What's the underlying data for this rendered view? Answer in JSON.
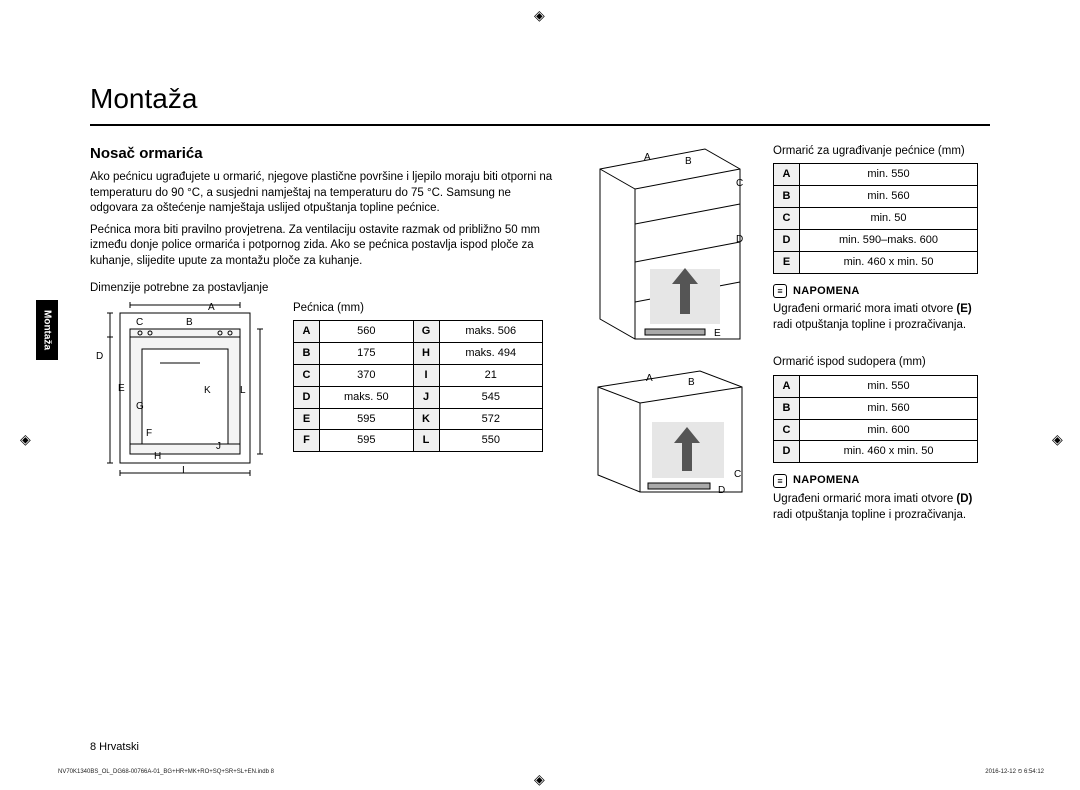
{
  "crop_mark": "◈",
  "side_tab": "Montaža",
  "heading": "Montaža",
  "section_title": "Nosač ormarića",
  "para1": "Ako pećnicu ugrađujete u ormarić, njegove plastične površine i ljepilo moraju biti otporni na temperaturu do 90 °C, a susjedni namještaj na temperaturu do 75 °C. Samsung ne odgovara za oštećenje namještaja uslijed otpuštanja topline pećnice.",
  "para2": "Pećnica mora biti pravilno provjetrena. Za ventilaciju ostavite razmak od približno 50 mm između donje police ormarića i potpornog zida. Ako se pećnica postavlja ispod ploče za kuhanje, slijedite upute za montažu ploče za kuhanje.",
  "dims_caption": "Dimenzije potrebne za postavljanje",
  "oven_table": {
    "caption": "Pećnica (mm)",
    "rows": [
      [
        "A",
        "560",
        "G",
        "maks. 506"
      ],
      [
        "B",
        "175",
        "H",
        "maks. 494"
      ],
      [
        "C",
        "370",
        "I",
        "21"
      ],
      [
        "D",
        "maks. 50",
        "J",
        "545"
      ],
      [
        "E",
        "595",
        "K",
        "572"
      ],
      [
        "F",
        "595",
        "L",
        "550"
      ]
    ]
  },
  "cab_table": {
    "caption": "Ormarić za ugrađivanje pećnice (mm)",
    "rows": [
      [
        "A",
        "min. 550"
      ],
      [
        "B",
        "min. 560"
      ],
      [
        "C",
        "min. 50"
      ],
      [
        "D",
        "min. 590–maks. 600"
      ],
      [
        "E",
        "min. 460 x min. 50"
      ]
    ]
  },
  "note_label": "NAPOMENA",
  "note1_pre": "Ugrađeni ormarić mora imati otvore ",
  "note1_bold": "(E)",
  "note1_post": " radi otpuštanja topline i prozračivanja.",
  "sink_table": {
    "caption": "Ormarić ispod sudopera (mm)",
    "rows": [
      [
        "A",
        "min. 550"
      ],
      [
        "B",
        "min. 560"
      ],
      [
        "C",
        "min. 600"
      ],
      [
        "D",
        "min. 460 x min. 50"
      ]
    ]
  },
  "note2_pre": "Ugrađeni ormarić mora imati otvore ",
  "note2_bold": "(D)",
  "note2_post": " radi otpuštanja topline i prozračivanja.",
  "page_footer": "8   Hrvatski",
  "tiny_left": "NV70K1340BS_OL_DG68-00766A-01_BG+HR+MK+RO+SQ+SR+SL+EN.indb   8",
  "tiny_right": "2016-12-12   ⏲ 6:54:12",
  "oven_labels": [
    "A",
    "B",
    "C",
    "D",
    "E",
    "F",
    "G",
    "H",
    "I",
    "J",
    "K",
    "L"
  ],
  "cab_labels": [
    "A",
    "B",
    "C",
    "D",
    "E"
  ],
  "sink_labels": [
    "A",
    "B",
    "C",
    "D"
  ],
  "colors": {
    "stroke": "#000",
    "light": "#d9d9d9",
    "fill": "#fff"
  }
}
